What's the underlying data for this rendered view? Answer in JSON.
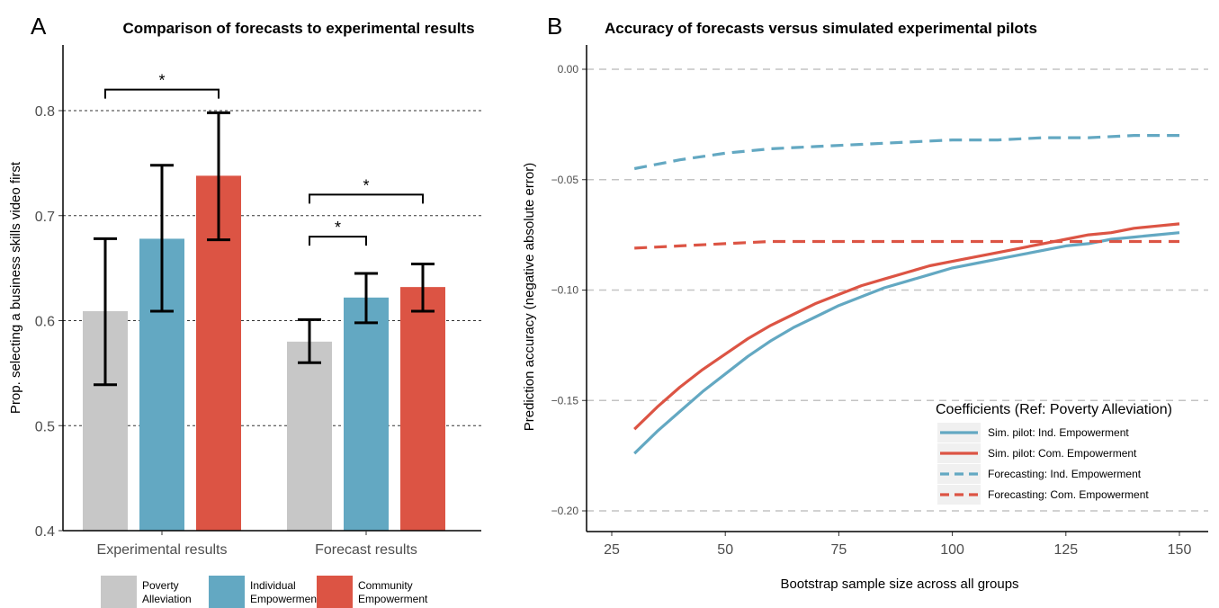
{
  "chart_data": [
    {
      "panel": "A",
      "type": "bar",
      "title": "Comparison of forecasts to experimental results",
      "xlabel": "",
      "ylabel": "Prop. selecting a business skills video first",
      "ylim": [
        0.4,
        0.8
      ],
      "yticks": [
        "0.4",
        "0.5",
        "0.6",
        "0.7",
        "0.8"
      ],
      "grid": "horizontal-dashed",
      "legend_position": "bottom",
      "categories": [
        "Experimental results",
        "Forecast results"
      ],
      "series": [
        {
          "name": "Poverty Alleviation",
          "legend_lines": [
            "Poverty",
            "Alleviation"
          ],
          "color": "#C7C7C7",
          "values": [
            0.609,
            0.58
          ],
          "err_low": [
            0.539,
            0.56
          ],
          "err_high": [
            0.678,
            0.601
          ]
        },
        {
          "name": "Individual Empowerment",
          "legend_lines": [
            "Individual",
            "Empowerment"
          ],
          "color": "#63A8C2",
          "values": [
            0.678,
            0.622
          ],
          "err_low": [
            0.609,
            0.598
          ],
          "err_high": [
            0.748,
            0.645
          ]
        },
        {
          "name": "Community Empowerment",
          "legend_lines": [
            "Community",
            "Empowerment"
          ],
          "color": "#DC5444",
          "values": [
            0.738,
            0.632
          ],
          "err_low": [
            0.677,
            0.609
          ],
          "err_high": [
            0.798,
            0.654
          ]
        }
      ],
      "annotations": [
        {
          "label": "*",
          "category": 0,
          "from_series": 0,
          "to_series": 2,
          "y": 0.82
        },
        {
          "label": "*",
          "category": 1,
          "from_series": 0,
          "to_series": 1,
          "y": 0.68
        },
        {
          "label": "*",
          "category": 1,
          "from_series": 0,
          "to_series": 2,
          "y": 0.72
        }
      ]
    },
    {
      "panel": "B",
      "type": "line",
      "title": "Accuracy of forecasts versus simulated experimental pilots",
      "xlabel": "Bootstrap sample size across all groups",
      "ylabel": "Prediction accuracy (negative absolute error)",
      "xlim": [
        20,
        155
      ],
      "ylim": [
        -0.21,
        0.01
      ],
      "xticks": [
        "25",
        "50",
        "75",
        "100",
        "125",
        "150"
      ],
      "yticks": [
        "0.00",
        "−0.05",
        "−0.10",
        "−0.15",
        "−0.20"
      ],
      "grid": "horizontal-dashed",
      "legend_title": "Coefficients (Ref: Poverty Alleviation)",
      "legend_position": "bottom-right",
      "series": [
        {
          "name": "Sim. pilot: Ind. Empowerment",
          "color": "#63A8C2",
          "dash": false,
          "x": [
            30,
            35,
            40,
            45,
            50,
            55,
            60,
            65,
            70,
            75,
            80,
            85,
            90,
            95,
            100,
            105,
            110,
            115,
            120,
            125,
            130,
            135,
            140,
            145,
            150
          ],
          "y": [
            -0.174,
            -0.164,
            -0.155,
            -0.146,
            -0.138,
            -0.13,
            -0.123,
            -0.117,
            -0.112,
            -0.107,
            -0.103,
            -0.099,
            -0.096,
            -0.093,
            -0.09,
            -0.088,
            -0.086,
            -0.084,
            -0.082,
            -0.08,
            -0.079,
            -0.077,
            -0.076,
            -0.075,
            -0.074
          ]
        },
        {
          "name": "Sim. pilot: Com. Empowerment",
          "color": "#DC5444",
          "dash": false,
          "x": [
            30,
            35,
            40,
            45,
            50,
            55,
            60,
            65,
            70,
            75,
            80,
            85,
            90,
            95,
            100,
            105,
            110,
            115,
            120,
            125,
            130,
            135,
            140,
            145,
            150
          ],
          "y": [
            -0.163,
            -0.153,
            -0.144,
            -0.136,
            -0.129,
            -0.122,
            -0.116,
            -0.111,
            -0.106,
            -0.102,
            -0.098,
            -0.095,
            -0.092,
            -0.089,
            -0.087,
            -0.085,
            -0.083,
            -0.081,
            -0.079,
            -0.077,
            -0.075,
            -0.074,
            -0.072,
            -0.071,
            -0.07
          ]
        },
        {
          "name": "Forecasting: Ind. Empowerment",
          "color": "#63A8C2",
          "dash": true,
          "x": [
            30,
            40,
            50,
            60,
            70,
            80,
            90,
            100,
            110,
            120,
            130,
            140,
            150
          ],
          "y": [
            -0.045,
            -0.041,
            -0.038,
            -0.036,
            -0.035,
            -0.034,
            -0.033,
            -0.032,
            -0.032,
            -0.031,
            -0.031,
            -0.03,
            -0.03
          ]
        },
        {
          "name": "Forecasting: Com. Empowerment",
          "color": "#DC5444",
          "dash": true,
          "x": [
            30,
            40,
            50,
            60,
            70,
            80,
            90,
            100,
            110,
            120,
            130,
            140,
            150
          ],
          "y": [
            -0.081,
            -0.08,
            -0.079,
            -0.078,
            -0.078,
            -0.078,
            -0.078,
            -0.078,
            -0.078,
            -0.078,
            -0.078,
            -0.078,
            -0.078
          ]
        }
      ]
    }
  ]
}
